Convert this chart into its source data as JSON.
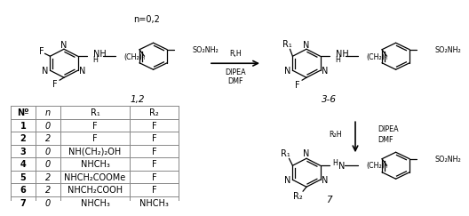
{
  "bg_color": "#ffffff",
  "table_headers": [
    "Nº",
    "n",
    "R₁",
    "R₂"
  ],
  "table_rows": [
    [
      "1",
      "0",
      "F",
      "F"
    ],
    [
      "2",
      "2",
      "F",
      "F"
    ],
    [
      "3",
      "0",
      "NH(CH₂)₂OH",
      "F"
    ],
    [
      "4",
      "0",
      "NHCH₃",
      "F"
    ],
    [
      "5",
      "2",
      "NHCH₂COOMe",
      "F"
    ],
    [
      "6",
      "2",
      "NHCH₂COOH",
      "F"
    ],
    [
      "7",
      "0",
      "NHCH₃",
      "NHCH₃"
    ]
  ],
  "fs": 7.0,
  "fs_small": 5.8,
  "fs_table": 7.0
}
